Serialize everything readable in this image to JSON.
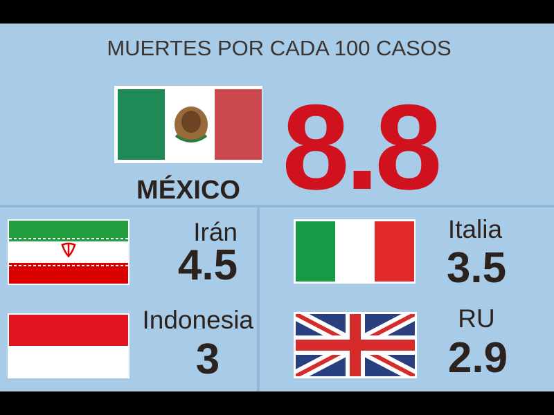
{
  "title": "MUERTES POR CADA 100 CASOS",
  "featured": {
    "name": "MÉXICO",
    "value": 8.8
  },
  "countries": [
    {
      "name": "Irán",
      "value": 4.5
    },
    {
      "name": "Italia",
      "value": 3.5
    },
    {
      "name": "Indonesia",
      "value": 3
    },
    {
      "name": "RU",
      "value": 2.9
    }
  ]
}
